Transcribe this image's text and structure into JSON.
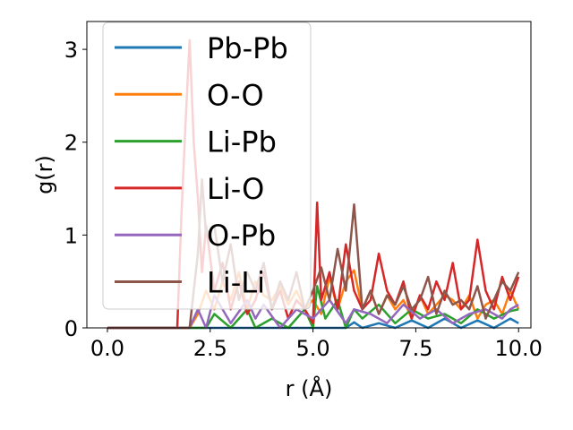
{
  "chart_data": {
    "type": "line",
    "title": "",
    "xlabel": "r (Å)",
    "ylabel": "g(r)",
    "xlim": [
      -0.5,
      10.3
    ],
    "ylim": [
      0,
      3.3
    ],
    "xticks": [
      "0.0",
      "2.5",
      "5.0",
      "7.5",
      "10.0"
    ],
    "xtick_values": [
      0,
      2.5,
      5.0,
      7.5,
      10.0
    ],
    "yticks": [
      "0",
      "1",
      "2",
      "3"
    ],
    "ytick_values": [
      0,
      1,
      2,
      3
    ],
    "grid": false,
    "legend_position": "upper-left",
    "colors": {
      "Pb-Pb": "#1f77b4",
      "O-O": "#ff7f0e",
      "Li-Pb": "#2ca02c",
      "Li-O": "#d62728",
      "O-Pb": "#9467bd",
      "Li-Li": "#8c564b"
    },
    "series": [
      {
        "name": "Pb-Pb",
        "x": [
          0.0,
          1.0,
          2.0,
          3.0,
          4.0,
          5.0,
          5.8,
          6.0,
          6.2,
          6.6,
          7.0,
          7.4,
          7.8,
          8.2,
          8.6,
          9.0,
          9.4,
          9.6,
          9.8,
          10.0
        ],
        "values": [
          0,
          0,
          0,
          0,
          0,
          0,
          0,
          0.06,
          0,
          0.05,
          0,
          0.08,
          0,
          0.1,
          0,
          0.08,
          0,
          0.05,
          0.1,
          0.05
        ]
      },
      {
        "name": "O-O",
        "x": [
          0.0,
          1.0,
          2.0,
          2.2,
          2.4,
          2.6,
          2.8,
          3.0,
          3.2,
          3.4,
          3.6,
          3.8,
          4.0,
          4.2,
          4.4,
          4.6,
          4.8,
          5.0,
          5.2,
          5.4,
          5.6,
          5.8,
          6.0,
          6.2,
          6.4,
          6.6,
          6.8,
          7.0,
          7.2,
          7.4,
          7.6,
          7.8,
          8.0,
          8.2,
          8.4,
          8.6,
          8.8,
          9.0,
          9.2,
          9.4,
          9.6,
          9.8,
          10.0
        ],
        "values": [
          0,
          0,
          0,
          0.15,
          0.4,
          0.2,
          0.5,
          0.3,
          0.6,
          0.2,
          0.5,
          0.35,
          0.3,
          0.45,
          0.25,
          0.4,
          0.2,
          0.3,
          0.15,
          0.55,
          0.2,
          0.5,
          0.62,
          0.2,
          0.4,
          0.15,
          0.35,
          0.2,
          0.3,
          0.1,
          0.35,
          0.15,
          0.25,
          0.35,
          0.3,
          0.2,
          0.35,
          0.1,
          0.25,
          0.3,
          0.15,
          0.4,
          0.2
        ]
      },
      {
        "name": "Li-Pb",
        "x": [
          0.0,
          1.0,
          2.0,
          2.4,
          2.6,
          3.0,
          3.4,
          3.6,
          4.0,
          4.4,
          4.8,
          5.0,
          5.1,
          5.3,
          5.6,
          5.8,
          6.0,
          6.2,
          6.6,
          7.0,
          7.4,
          7.8,
          8.2,
          8.6,
          9.0,
          9.4,
          9.8,
          10.0
        ],
        "values": [
          0,
          0,
          0,
          0,
          0.15,
          0,
          0.2,
          0,
          0.1,
          0,
          0.2,
          0,
          0.45,
          0.1,
          0.3,
          0,
          0.2,
          0.1,
          0.25,
          0.05,
          0.2,
          0.1,
          0.15,
          0.05,
          0.2,
          0.1,
          0.18,
          0.2
        ]
      },
      {
        "name": "Li-O",
        "x": [
          0.0,
          1.0,
          1.7,
          1.8,
          1.9,
          2.0,
          2.1,
          2.2,
          2.3,
          2.4,
          2.6,
          2.8,
          3.0,
          3.2,
          3.4,
          3.6,
          3.8,
          4.0,
          4.2,
          4.4,
          4.6,
          4.8,
          5.0,
          5.1,
          5.2,
          5.4,
          5.6,
          5.8,
          6.0,
          6.2,
          6.4,
          6.6,
          6.8,
          7.0,
          7.2,
          7.4,
          7.6,
          7.8,
          8.0,
          8.2,
          8.4,
          8.6,
          8.8,
          9.0,
          9.2,
          9.4,
          9.6,
          9.8,
          10.0
        ],
        "values": [
          0,
          0,
          0,
          1.2,
          2.2,
          3.1,
          2.0,
          1.4,
          0.6,
          1.1,
          0.4,
          0.7,
          0.2,
          0.5,
          0.15,
          0.3,
          0.6,
          0.2,
          0.4,
          0.1,
          0.3,
          0.2,
          0.05,
          1.35,
          0.3,
          0.6,
          0.2,
          0.9,
          0.4,
          0.2,
          0.3,
          0.8,
          0.4,
          0.25,
          0.5,
          0.1,
          0.35,
          0.2,
          0.5,
          0.3,
          0.7,
          0.2,
          0.3,
          0.95,
          0.4,
          0.2,
          0.55,
          0.3,
          0.55
        ]
      },
      {
        "name": "O-Pb",
        "x": [
          0.0,
          1.0,
          2.0,
          2.2,
          2.4,
          2.6,
          3.0,
          3.4,
          3.6,
          3.8,
          4.2,
          4.6,
          5.0,
          5.4,
          5.8,
          6.0,
          6.4,
          6.8,
          7.2,
          7.6,
          8.0,
          8.4,
          8.8,
          9.2,
          9.6,
          9.8,
          10.0
        ],
        "values": [
          0,
          0,
          0,
          0.2,
          0,
          0.35,
          0.05,
          0.3,
          0.1,
          0.25,
          0,
          0.2,
          0.1,
          0.3,
          0.05,
          0.2,
          0.15,
          0.05,
          0.25,
          0.1,
          0.2,
          0.05,
          0.15,
          0.2,
          0.1,
          0.2,
          0.25
        ]
      },
      {
        "name": "Li-Li",
        "x": [
          0.0,
          1.0,
          2.0,
          2.2,
          2.3,
          2.4,
          2.6,
          2.8,
          3.0,
          3.2,
          3.4,
          3.6,
          3.8,
          4.0,
          4.2,
          4.4,
          4.6,
          4.8,
          5.0,
          5.2,
          5.4,
          5.6,
          5.8,
          6.0,
          6.2,
          6.4,
          6.6,
          6.8,
          7.0,
          7.2,
          7.4,
          7.6,
          7.8,
          8.0,
          8.2,
          8.4,
          8.6,
          8.8,
          9.0,
          9.2,
          9.4,
          9.6,
          9.8,
          10.0
        ],
        "values": [
          0,
          0,
          0,
          0.8,
          1.6,
          1.0,
          1.1,
          0.5,
          0.9,
          0.3,
          0.6,
          0.4,
          0.7,
          0.2,
          0.5,
          0.3,
          0.6,
          0.2,
          0.4,
          0.65,
          0.3,
          0.85,
          0.4,
          1.33,
          0.2,
          0.4,
          0.15,
          0.35,
          0.25,
          0.45,
          0.2,
          0.3,
          0.55,
          0.15,
          0.4,
          0.25,
          0.3,
          0.2,
          0.45,
          0.1,
          0.3,
          0.5,
          0.4,
          0.6
        ]
      }
    ]
  }
}
